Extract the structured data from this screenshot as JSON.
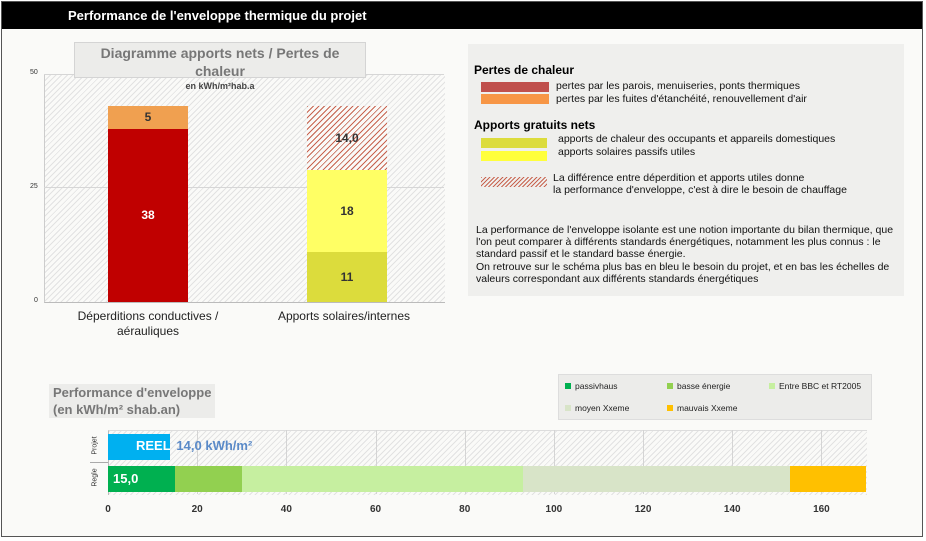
{
  "header": {
    "title": "Performance de l'enveloppe thermique du projet"
  },
  "chart1": {
    "title": "Diagramme apports nets / Pertes de chaleur",
    "subtitle": "en kWh/m²hab.a",
    "yticks": [
      "50",
      "25",
      "0"
    ],
    "categories": [
      "Déperditions conductives / aérauliques",
      "Apports solaires/internes"
    ],
    "labels": {
      "b1s1": "38",
      "b1s2": "5",
      "b2s1": "11",
      "b2s2": "18",
      "b2s3": "14,0"
    }
  },
  "chart_data": [
    {
      "type": "bar",
      "stacked": true,
      "title": "Diagramme apports nets / Pertes de chaleur",
      "subtitle": "en kWh/m²hab.a",
      "categories": [
        "Déperditions conductives / aérauliques",
        "Apports solaires/internes"
      ],
      "ylim": [
        0,
        50
      ],
      "yticks": [
        0,
        25,
        50
      ],
      "series": [
        {
          "name": "pertes par les parois, menuiseries, ponts thermiques",
          "color": "#c00000",
          "values": [
            38,
            0
          ]
        },
        {
          "name": "pertes par les fuites d'étanchéité, renouvellement d'air",
          "color": "#f0a050",
          "values": [
            5,
            0
          ]
        },
        {
          "name": "apports de chaleur des occupants et appareils domestiques",
          "color": "#dcdc3c",
          "values": [
            0,
            11
          ]
        },
        {
          "name": "apports solaires passifs utiles",
          "color": "#ffff64",
          "values": [
            0,
            18
          ]
        },
        {
          "name": "La différence entre déperdition et apports utiles donne la performance d'enveloppe, c'est à dire le besoin de chauffage",
          "color": "#c86450",
          "values": [
            0,
            14.0
          ]
        }
      ]
    },
    {
      "type": "bar",
      "orientation": "horizontal",
      "title": "Performance d'enveloppe",
      "subtitle": "(en kWh/m² shab.an)",
      "xlim": [
        0,
        170
      ],
      "xticks": [
        0,
        20,
        40,
        60,
        80,
        100,
        120,
        140,
        160
      ],
      "rows": [
        "Projet",
        "Regle"
      ],
      "projet": {
        "label": "REEL",
        "value": 14.0,
        "value_text": "14,0 kWh/m²",
        "color": "#00b0f0"
      },
      "regle": {
        "label": "15,0",
        "segments": [
          {
            "name": "passivhaus",
            "from": 0,
            "to": 15,
            "color": "#00b050"
          },
          {
            "name": "basse énergie",
            "from": 15,
            "to": 30,
            "color": "#92d050"
          },
          {
            "name": "Entre BBC et RT2005",
            "from": 30,
            "to": 93,
            "color": "#c6efa0"
          },
          {
            "name": "moyen Xxeme",
            "from": 93,
            "to": 153,
            "color": "#d8e4c8"
          },
          {
            "name": "mauvais Xxeme",
            "from": 153,
            "to": 170,
            "color": "#ffc000"
          }
        ]
      }
    }
  ],
  "legend": {
    "pertes_title": "Pertes de chaleur",
    "pertes1": "pertes par les parois, menuiseries, ponts thermiques",
    "pertes2": "pertes par les fuites d'étanchéité, renouvellement d'air",
    "apports_title": "Apports gratuits nets",
    "apports1": "apports de chaleur des occupants et appareils domestiques",
    "apports2": "apports solaires passifs utiles",
    "diff_line1": "La différence entre déperdition et apports utiles donne",
    "diff_line2": "la performance d'enveloppe, c'est à dire le besoin de chauffage",
    "para1": "La performance de l'enveloppe isolante est une notion importante du bilan thermique, que l'on peut comparer à différents standards énergétiques, notamment les plus connus : le standard passif et le standard basse énergie.",
    "para2": "On retrouve sur le schéma plus bas en bleu le besoin du projet, et en bas les échelles de valeurs correspondant aux différents standards énergétiques"
  },
  "perf": {
    "title": "Performance d'enveloppe",
    "subtitle": "(en kWh/m² shab.an)",
    "row_projet": "Projet",
    "row_regle": "Regle",
    "reel_label": "REEL",
    "reel_value": "14,0 kWh/m²",
    "regle_value": "15,0",
    "xticks": [
      "0",
      "20",
      "40",
      "60",
      "80",
      "100",
      "120",
      "140",
      "160"
    ],
    "legend": [
      "passivhaus",
      "basse énergie",
      "Entre BBC et RT2005",
      "moyen Xxeme",
      "mauvais Xxeme"
    ]
  }
}
